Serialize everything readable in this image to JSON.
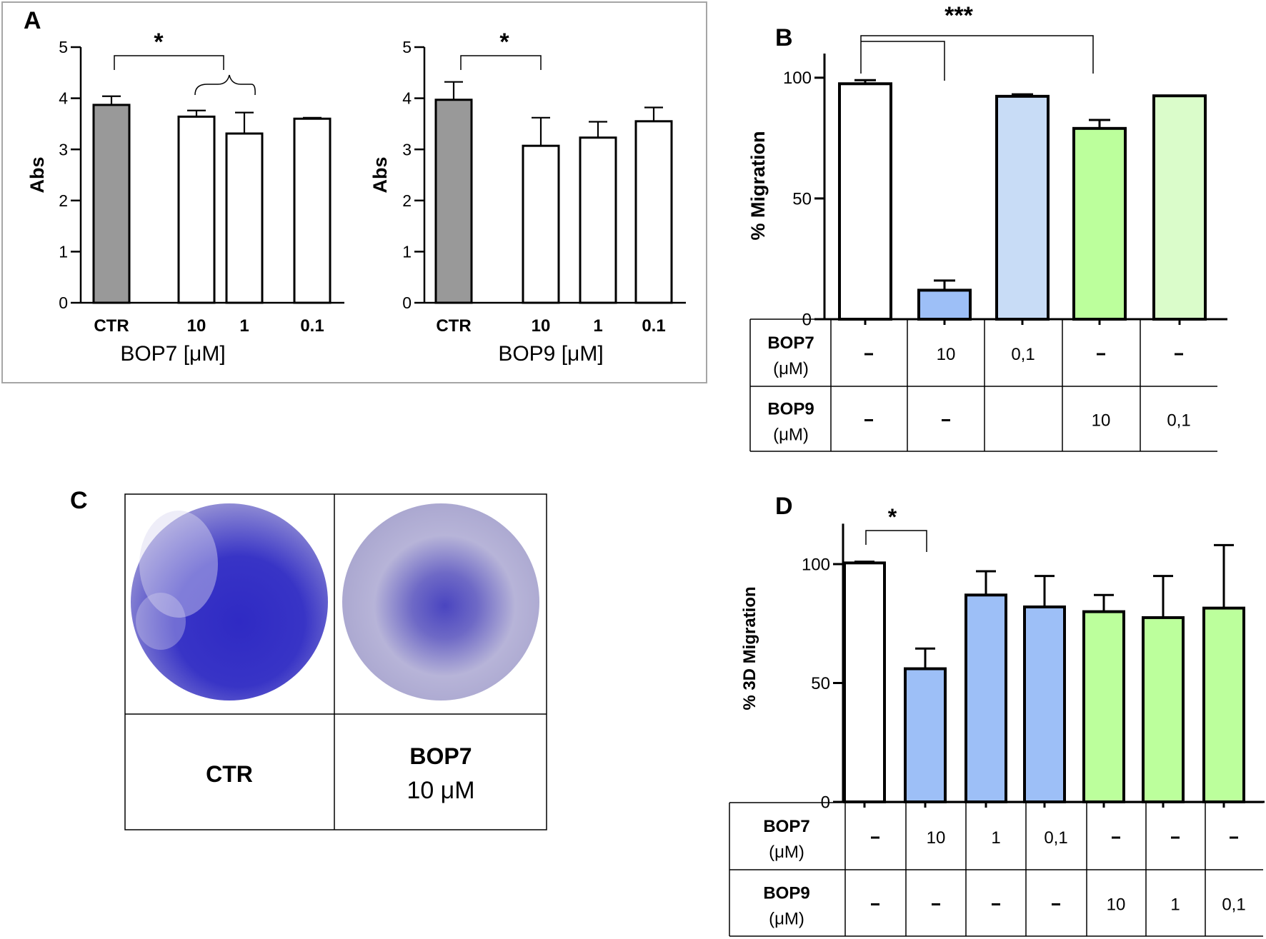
{
  "chart_data": [
    {
      "panel": "A",
      "type": "bar",
      "ylabel": "Abs",
      "xlabel": "BOP7 [μM]",
      "ylim": [
        0,
        5
      ],
      "yticks": [
        "0",
        "1",
        "2",
        "3",
        "4",
        "5"
      ],
      "categories": [
        "CTR",
        "10",
        "1",
        "0.1"
      ],
      "values": [
        3.87,
        3.64,
        3.31,
        3.6
      ],
      "errors": [
        0.17,
        0.12,
        0.41,
        0.02
      ],
      "fills": [
        "#999999",
        "#ffffff",
        "#ffffff",
        "#ffffff"
      ],
      "significance": "*"
    },
    {
      "panel": "A",
      "type": "bar",
      "ylabel": "Abs",
      "xlabel": "BOP9 [μM]",
      "ylim": [
        0,
        5
      ],
      "yticks": [
        "0",
        "1",
        "2",
        "3",
        "4",
        "5"
      ],
      "categories": [
        "CTR",
        "10",
        "1",
        "0.1"
      ],
      "values": [
        3.97,
        3.07,
        3.23,
        3.55
      ],
      "errors": [
        0.35,
        0.55,
        0.31,
        0.27
      ],
      "fills": [
        "#999999",
        "#ffffff",
        "#ffffff",
        "#ffffff"
      ],
      "significance": "*"
    },
    {
      "panel": "B",
      "type": "bar",
      "ylabel": "% Migration",
      "ylim": [
        0,
        110
      ],
      "yticks": [
        "0",
        "50",
        "100"
      ],
      "values": [
        97.5,
        12,
        92.3,
        79,
        92.5
      ],
      "errors": [
        1.5,
        4,
        0.8,
        3.5,
        0
      ],
      "fills": [
        "#ffffff",
        "#9dbff7",
        "#c8dcf6",
        "#bcff9c",
        "#dafcca"
      ],
      "significance": "***",
      "table": {
        "rows": [
          {
            "label": "BOP7",
            "unit": "(μM)",
            "cells": [
              "-",
              "10",
              "0,1",
              "-",
              "-"
            ]
          },
          {
            "label": "BOP9",
            "unit": "(μM)",
            "cells": [
              "-",
              "-",
              "",
              "10",
              "0,1"
            ]
          }
        ]
      }
    },
    {
      "panel": "D",
      "type": "bar",
      "ylabel": "% 3D Migration",
      "ylim": [
        0,
        117
      ],
      "yticks": [
        "0",
        "50",
        "100"
      ],
      "values": [
        100.5,
        56,
        87,
        82,
        80,
        77.5,
        81.5
      ],
      "errors": [
        0.5,
        8.5,
        10,
        13,
        7,
        17.5,
        26.5
      ],
      "fills": [
        "#ffffff",
        "#9dbff7",
        "#9dbff7",
        "#9dbff7",
        "#bcff9c",
        "#bcff9c",
        "#bcff9c"
      ],
      "significance": "*",
      "table": {
        "rows": [
          {
            "label": "BOP7",
            "unit": "(μM)",
            "cells": [
              "-",
              "10",
              "1",
              "0,1",
              "-",
              "-",
              "-"
            ]
          },
          {
            "label": "BOP9",
            "unit": "(μM)",
            "cells": [
              "-",
              "-",
              "-",
              "-",
              "10",
              "1",
              "0,1"
            ]
          }
        ]
      }
    }
  ],
  "panel_labels": {
    "a": "A",
    "b": "B",
    "c": "C",
    "d": "D"
  },
  "panel_c": {
    "left": {
      "title": "CTR"
    },
    "right": {
      "title": "BOP7",
      "sub": "10 μM"
    },
    "dish_color": "#3b36c4",
    "dish_bg": "#c9c6e0"
  }
}
